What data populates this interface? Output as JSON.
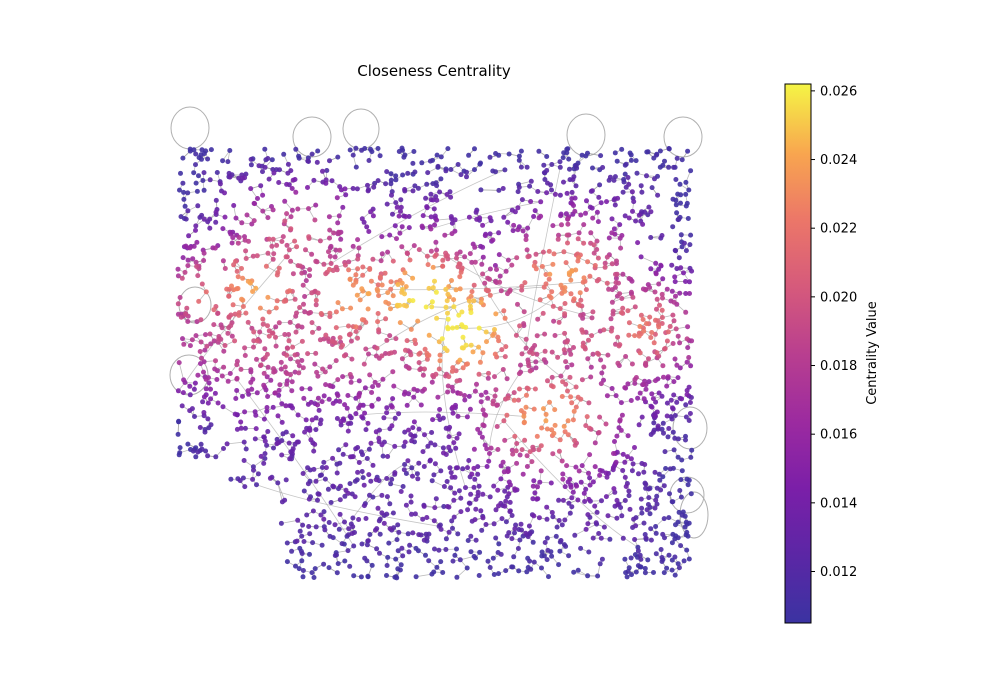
{
  "chart_data": {
    "type": "scatter",
    "subtype": "network-graph",
    "title": "Closeness Centrality",
    "xlabel": "",
    "ylabel": "",
    "axes_visible": false,
    "grid": false,
    "colorbar": {
      "label": "Centrality Value",
      "colormap": "plasma",
      "range": [
        0.0105,
        0.0262
      ],
      "ticks": [
        0.012,
        0.014,
        0.016,
        0.018,
        0.02,
        0.022,
        0.024,
        0.026
      ],
      "tick_labels": [
        "0.012",
        "0.014",
        "0.016",
        "0.018",
        "0.020",
        "0.022",
        "0.024",
        "0.026"
      ]
    },
    "colors": {
      "edge": "#a0a0a0",
      "node_low": "#0d0887",
      "node_mid": "#cc4778",
      "node_high": "#f0f921"
    },
    "hotspots": [
      {
        "x": 0.55,
        "y": 0.42,
        "value": 0.0255
      },
      {
        "x": 0.48,
        "y": 0.35,
        "value": 0.0245
      },
      {
        "x": 0.35,
        "y": 0.35,
        "value": 0.022
      },
      {
        "x": 0.15,
        "y": 0.33,
        "value": 0.0215
      },
      {
        "x": 0.05,
        "y": 0.34,
        "value": 0.0205
      },
      {
        "x": 0.75,
        "y": 0.3,
        "value": 0.0215
      },
      {
        "x": 0.92,
        "y": 0.42,
        "value": 0.0205
      },
      {
        "x": 0.72,
        "y": 0.62,
        "value": 0.022
      },
      {
        "x": 0.22,
        "y": 0.22,
        "value": 0.018
      }
    ],
    "coldspots": [
      {
        "x": 0.02,
        "y": 0.97,
        "value": 0.0108
      },
      {
        "x": 0.98,
        "y": 0.97,
        "value": 0.0115
      },
      {
        "x": 0.98,
        "y": 0.05,
        "value": 0.0118
      },
      {
        "x": 0.45,
        "y": 0.02,
        "value": 0.0125
      },
      {
        "x": 0.8,
        "y": 0.02,
        "value": 0.013
      }
    ]
  }
}
